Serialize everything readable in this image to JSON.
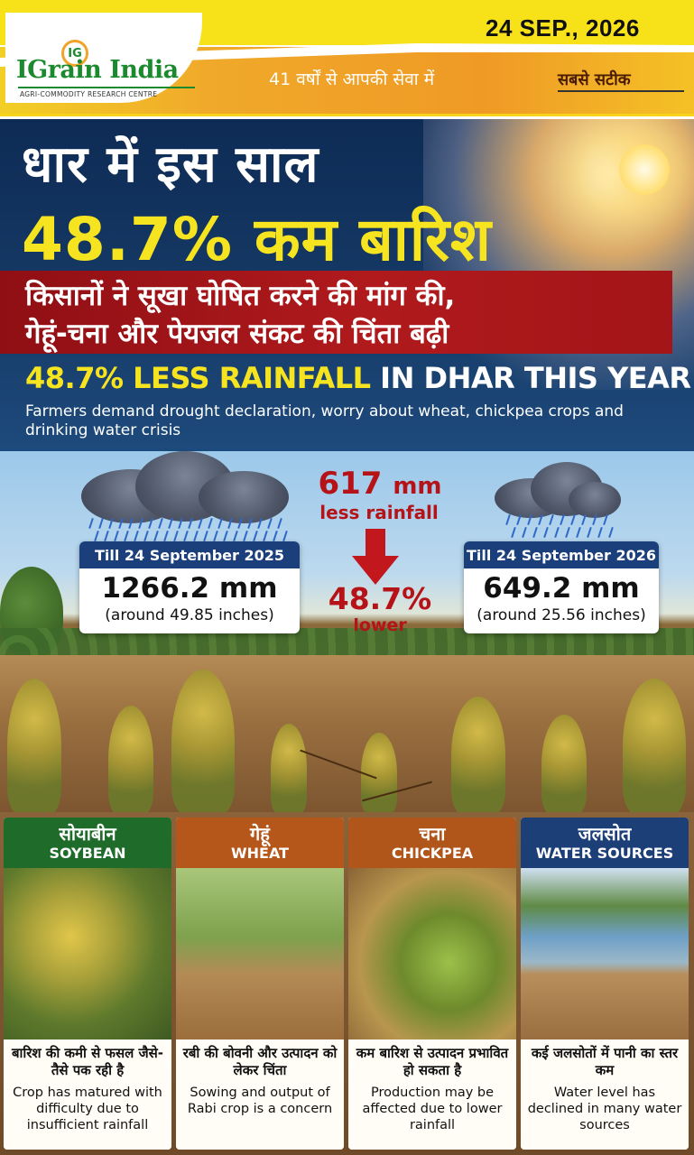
{
  "header": {
    "logo_mark": "IG",
    "logo_title": "IGrain India",
    "logo_subtitle": "AGRI-COMMODITY RESEARCH CENTRE",
    "date": "24 SEP., 2026",
    "tagline": "41 वर्षों से आपकी सेवा में",
    "tagline_right": "सबसे सटीक"
  },
  "hero": {
    "title_line1": "धार में इस साल",
    "title_line2": "48.7% कम बारिश",
    "subtitle_line1": "किसानों ने सूखा घोषित करने की मांग की,",
    "subtitle_line2": "गेहूं-चना और पेयजल संकट की चिंता बढ़ी",
    "english_title_highlight": "48.7% LESS RAINFALL",
    "english_title_rest": " IN DHAR THIS YEAR",
    "english_subtitle": "Farmers demand drought declaration, worry about wheat, chickpea crops and drinking water crisis"
  },
  "comparison": {
    "left": {
      "label": "Till 24 September 2025",
      "value": "1266.2 mm",
      "sub": "(around 49.85 inches)"
    },
    "right": {
      "label": "Till 24 September 2026",
      "value": "649.2 mm",
      "sub": "(around 25.56 inches)"
    },
    "difference_value": "617",
    "difference_unit": "mm",
    "difference_label": "less rainfall",
    "percent": "48.7%",
    "percent_label": "lower"
  },
  "panels": [
    {
      "title_hi": "सोयाबीन",
      "title_en": "SOYBEAN",
      "head_color": "#1f6b2a",
      "text_hi": "बारिश की कमी से फसल जैसे-तैसे पक रही है",
      "text_en": "Crop has matured with difficulty due to insufficient rainfall"
    },
    {
      "title_hi": "गेहूं",
      "title_en": "WHEAT",
      "head_color": "#b5561b",
      "text_hi": "रबी की बोवनी और उत्पादन को लेकर चिंता",
      "text_en": "Sowing and output of Rabi crop is a concern"
    },
    {
      "title_hi": "चना",
      "title_en": "CHICKPEA",
      "head_color": "#b0561a",
      "text_hi": "कम बारिश से उत्पादन प्रभावित हो सकता है",
      "text_en": "Production may be affected due to lower rainfall"
    },
    {
      "title_hi": "जलसोत",
      "title_en": "WATER SOURCES",
      "head_color": "#1d3f78",
      "text_hi": "कई जलसोतों में पानी का स्तर कम",
      "text_en": "Water level has declined in many water sources"
    }
  ]
}
